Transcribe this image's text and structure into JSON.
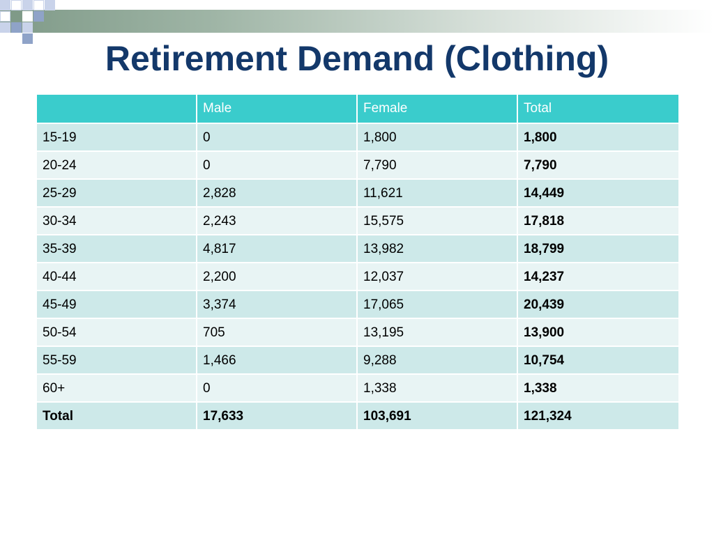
{
  "slide": {
    "title": "Retirement Demand (Clothing)"
  },
  "colors": {
    "title": "#13386a",
    "header_bg": "#3acccc",
    "row_odd": "#cde9e9",
    "row_even": "#e8f4f4",
    "deco_blue": "#8fa3c8",
    "deco_green": "#7f9a88"
  },
  "table": {
    "headers": [
      "",
      "Male",
      "Female",
      "Total"
    ],
    "rows": [
      [
        "15-19",
        "0",
        "1,800",
        "1,800"
      ],
      [
        "20-24",
        "0",
        "7,790",
        "7,790"
      ],
      [
        "25-29",
        "2,828",
        "11,621",
        "14,449"
      ],
      [
        "30-34",
        "2,243",
        "15,575",
        "17,818"
      ],
      [
        "35-39",
        "4,817",
        "13,982",
        "18,799"
      ],
      [
        "40-44",
        "2,200",
        "12,037",
        "14,237"
      ],
      [
        "45-49",
        "3,374",
        "17,065",
        "20,439"
      ],
      [
        "50-54",
        "705",
        "13,195",
        "13,900"
      ],
      [
        "55-59",
        "1,466",
        "9,288",
        "10,754"
      ],
      [
        "60+",
        "0",
        "1,338",
        "1,338"
      ]
    ],
    "total_row": [
      "Total",
      "17,633",
      "103,691",
      "121,324"
    ]
  }
}
